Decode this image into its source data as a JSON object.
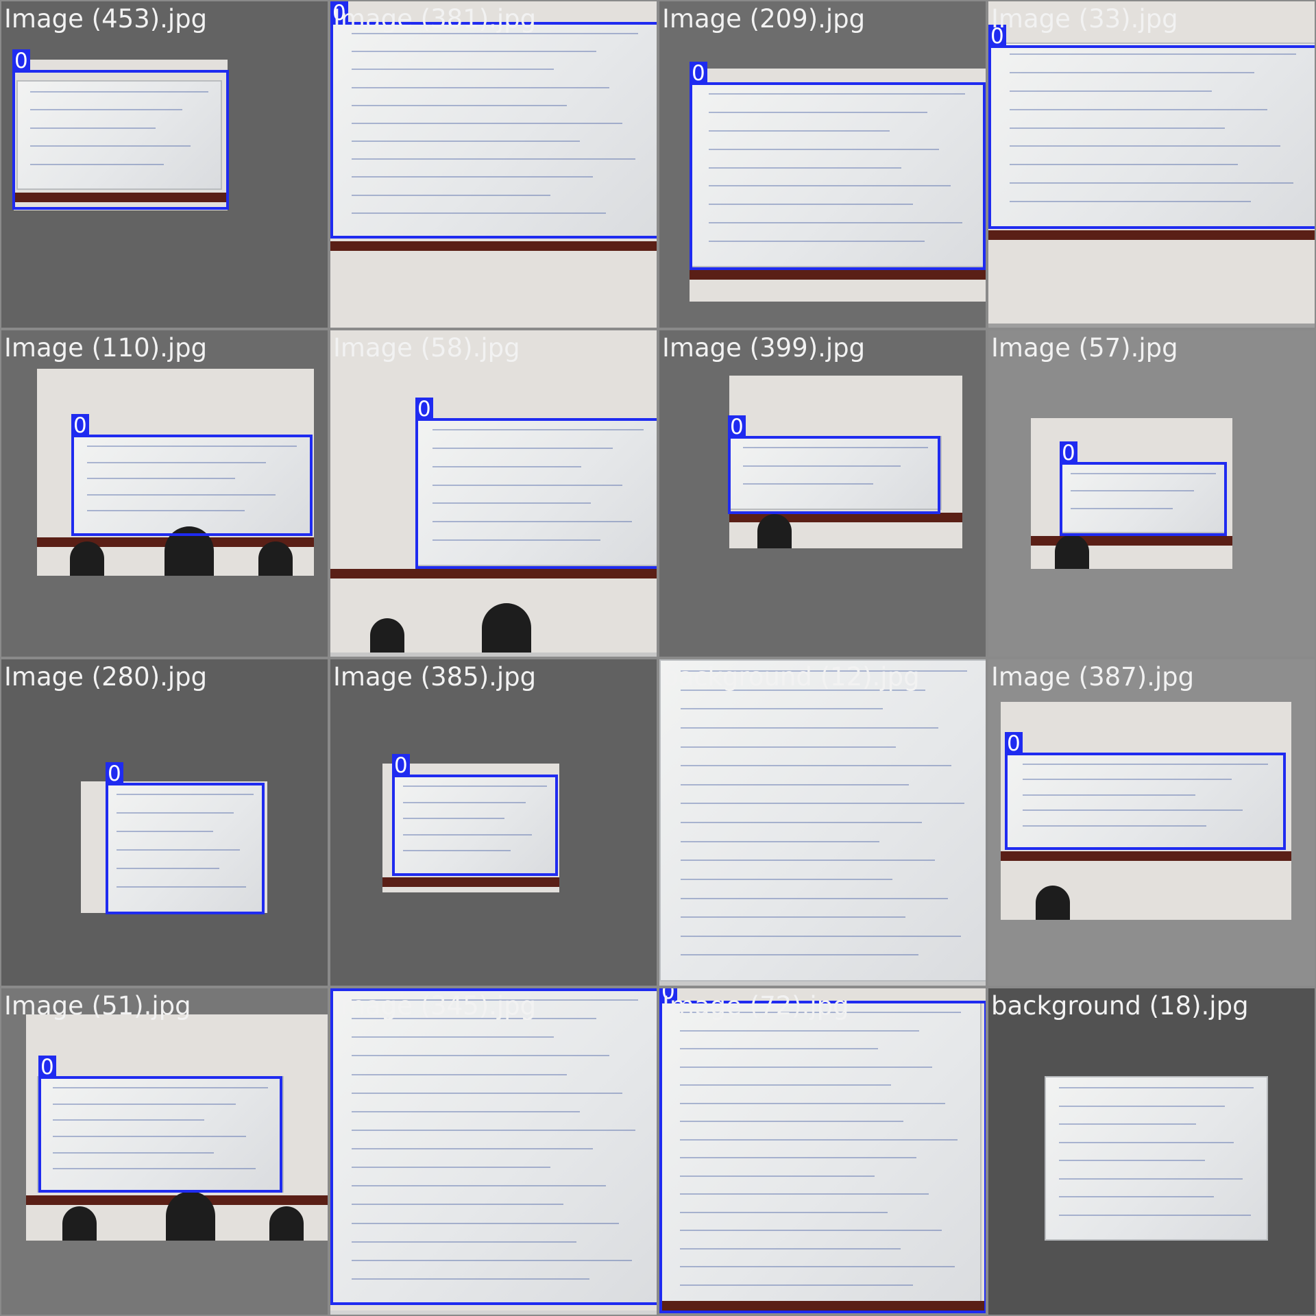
{
  "tiles": [
    {
      "label": "Image (453).jpg"
    },
    {
      "label": "Image (381).jpg"
    },
    {
      "label": "Image (209).jpg"
    },
    {
      "label": "Image (33).jpg"
    },
    {
      "label": "Image (110).jpg"
    },
    {
      "label": "Image (58).jpg"
    },
    {
      "label": "Image (399).jpg"
    },
    {
      "label": "Image (57).jpg"
    },
    {
      "label": "Image (280).jpg"
    },
    {
      "label": "Image (385).jpg"
    },
    {
      "label": "background (12).jpg"
    },
    {
      "label": "Image (387).jpg"
    },
    {
      "label": "Image (51).jpg"
    },
    {
      "label": "Image (345).jpg"
    },
    {
      "label": "Image (72).jpg"
    },
    {
      "label": "background (18).jpg"
    }
  ],
  "detection_class": "0",
  "colors": {
    "bbox": "#1f2bf0",
    "tile_bg_light": "#8f8f8f",
    "tile_bg_dark": "#5f5f5f",
    "caption_text": "#f2f2f2"
  }
}
